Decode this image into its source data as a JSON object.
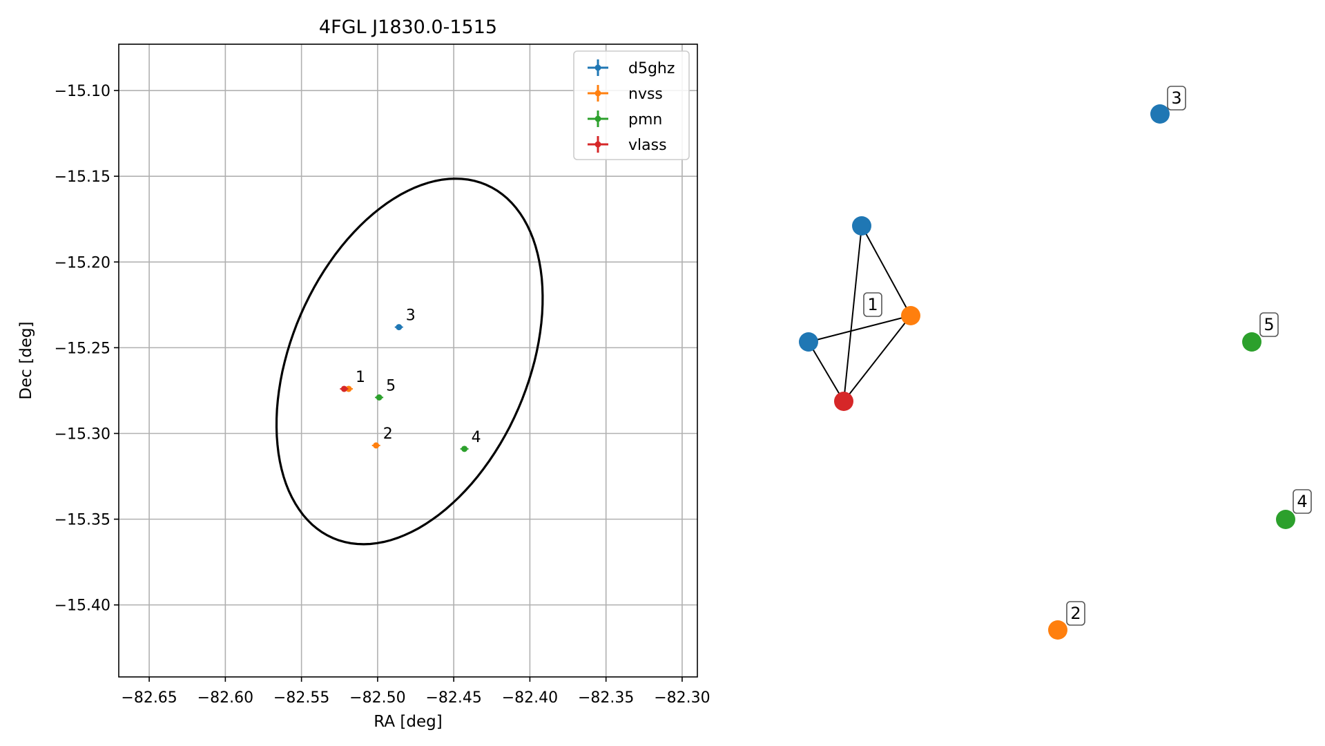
{
  "chart_data": [
    {
      "type": "scatter",
      "title": "4FGL J1830.0-1515",
      "xlabel": "RA [deg]",
      "ylabel": "Dec [deg]",
      "xlim": [
        -82.67,
        -82.29
      ],
      "ylim": [
        -15.442,
        -15.073
      ],
      "xticks": [
        -82.65,
        -82.6,
        -82.55,
        -82.5,
        -82.45,
        -82.4,
        -82.35,
        -82.3
      ],
      "xtick_labels": [
        "−82.65",
        "−82.60",
        "−82.55",
        "−82.50",
        "−82.45",
        "−82.40",
        "−82.35",
        "−82.30"
      ],
      "yticks": [
        -15.1,
        -15.15,
        -15.2,
        -15.25,
        -15.3,
        -15.35,
        -15.4
      ],
      "ytick_labels": [
        "−15.10",
        "−15.15",
        "−15.20",
        "−15.25",
        "−15.30",
        "−15.35",
        "−15.40"
      ],
      "grid": true,
      "legend_position": "top-right",
      "series": [
        {
          "name": "d5ghz",
          "color": "#1f77b4",
          "points": [
            {
              "ra": -82.486,
              "dec": -15.238,
              "label": "3"
            }
          ]
        },
        {
          "name": "nvss",
          "color": "#ff7f0e",
          "points": [
            {
              "ra": -82.519,
              "dec": -15.274,
              "label": "1"
            },
            {
              "ra": -82.501,
              "dec": -15.307,
              "label": "2"
            }
          ]
        },
        {
          "name": "pmn",
          "color": "#2ca02c",
          "points": [
            {
              "ra": -82.499,
              "dec": -15.279,
              "label": "5"
            },
            {
              "ra": -82.443,
              "dec": -15.309,
              "label": "4"
            }
          ]
        },
        {
          "name": "vlass",
          "color": "#d62728",
          "points": [
            {
              "ra": -82.522,
              "dec": -15.274,
              "label": ""
            }
          ]
        }
      ],
      "ellipse": {
        "center_ra": -82.479,
        "center_dec": -15.258,
        "semi_major_deg": 0.115,
        "semi_minor_deg": 0.076,
        "angle_deg": 60
      }
    },
    {
      "type": "network",
      "nodes": [
        {
          "id": "a",
          "color": "#1f77b4"
        },
        {
          "id": "b",
          "color": "#1f77b4"
        },
        {
          "id": "c",
          "color": "#ff7f0e"
        },
        {
          "id": "d",
          "color": "#d62728"
        },
        {
          "id": "e",
          "color": "#1f77b4"
        },
        {
          "id": "f",
          "color": "#2ca02c"
        },
        {
          "id": "g",
          "color": "#2ca02c"
        },
        {
          "id": "h",
          "color": "#ff7f0e"
        }
      ],
      "edges": [
        [
          "a",
          "c"
        ],
        [
          "a",
          "d"
        ],
        [
          "b",
          "c"
        ],
        [
          "b",
          "d"
        ],
        [
          "c",
          "d"
        ]
      ],
      "labels": [
        {
          "text": "1",
          "group": [
            "a",
            "b",
            "c",
            "d"
          ]
        },
        {
          "text": "3",
          "node": "e"
        },
        {
          "text": "5",
          "node": "f"
        },
        {
          "text": "4",
          "node": "g"
        },
        {
          "text": "2",
          "node": "h"
        }
      ]
    }
  ]
}
